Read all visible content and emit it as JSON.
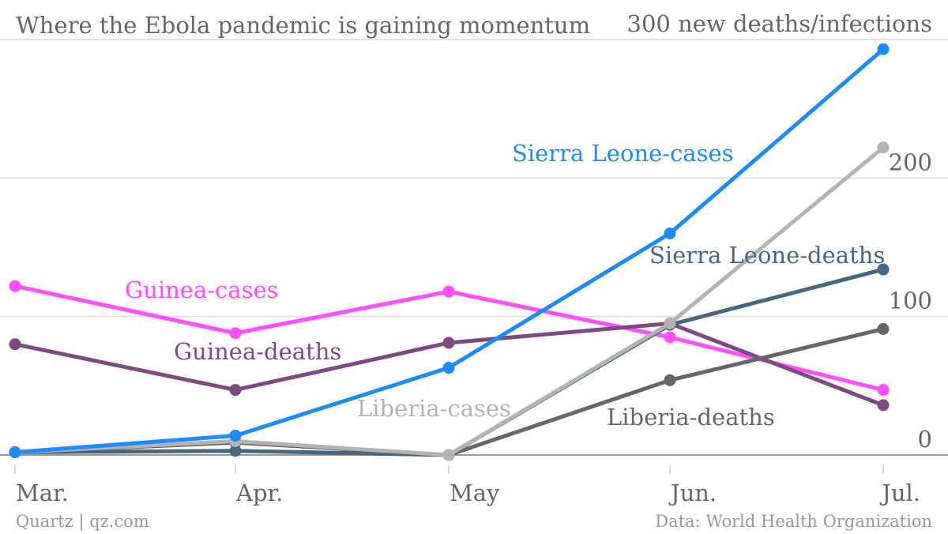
{
  "chart_data": {
    "type": "line",
    "title": "Where the Ebola pandemic is gaining momentum",
    "ylabel": "new deaths/infections",
    "xlabel": "",
    "categories": [
      "Mar.",
      "Apr.",
      "May",
      "Jun.",
      "Jul."
    ],
    "ylim": [
      0,
      300
    ],
    "yticks": [
      0,
      100,
      200,
      300
    ],
    "ytick_labels": [
      "0",
      "100",
      "200",
      "300 new deaths/infections"
    ],
    "grid": true,
    "series": [
      {
        "name": "Guinea-cases",
        "color": "#ff4dff",
        "values": [
          122,
          88,
          118,
          85,
          47
        ]
      },
      {
        "name": "Guinea-deaths",
        "color": "#7e4b80",
        "values": [
          80,
          47,
          81,
          95,
          36
        ]
      },
      {
        "name": "Liberia-deaths",
        "color": "#666666",
        "values": [
          2,
          9,
          0,
          54,
          91
        ]
      },
      {
        "name": "Sierra Leone-deaths",
        "color": "#46677f",
        "values": [
          2,
          3,
          0,
          94,
          134
        ]
      },
      {
        "name": "Liberia-cases",
        "color": "#b3b3b3",
        "values": [
          2,
          10,
          0,
          95,
          222
        ]
      },
      {
        "name": "Sierra Leone-cases",
        "color": "#1a8cff",
        "values": [
          2,
          14,
          63,
          160,
          293
        ]
      }
    ]
  },
  "footer": {
    "source_left": "Quartz | qz.com",
    "source_right": "Data: World Health Organization"
  }
}
